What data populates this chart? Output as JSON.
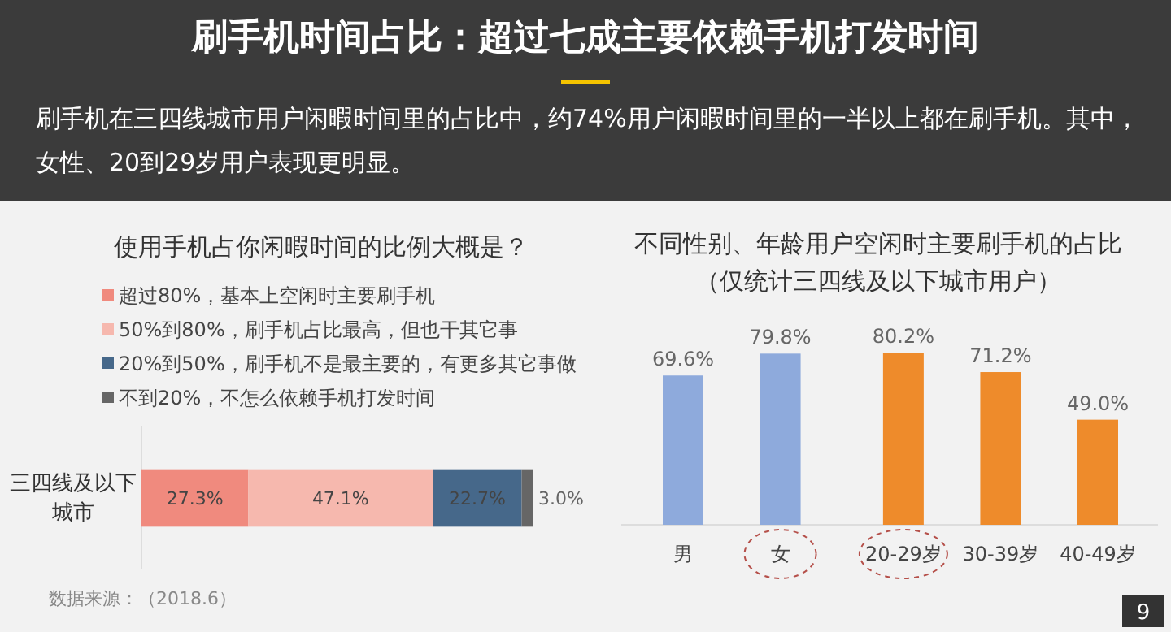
{
  "chart_data": [
    {
      "type": "other",
      "title": "刷手机时间占比：超过七成主要依赖手机打发时间",
      "subtitle": "刷手机在三四线城市用户闲暇时间里的占比中，约74%用户闲暇时间里的一半以上都在刷手机。其中，女性、20到29岁用户表现更明显。",
      "annotations": [
        "9"
      ]
    },
    {
      "type": "bar",
      "orientation": "horizontal",
      "stacked": true,
      "title": "使用手机占你闲暇时间的比例大概是？",
      "categories": [
        "三四线及以下城市"
      ],
      "tick_labels": "y",
      "legend": "top",
      "series": [
        {
          "name": "超过80%，基本上空闲时主要刷手机",
          "color": "#f08a7e",
          "values": [
            27.3
          ],
          "value_labels": [
            "27.3%"
          ]
        },
        {
          "name": "50%到80%，刷手机占比最高，但也干其它事",
          "color": "#f6b8ae",
          "values": [
            47.1
          ],
          "value_labels": [
            "47.1%"
          ]
        },
        {
          "name": "20%到50%，刷手机不是最主要的，有更多其它事做",
          "color": "#46688a",
          "values": [
            22.7
          ],
          "value_labels": [
            "22.7%"
          ]
        },
        {
          "name": "不到20%，不怎么依赖手机打发时间",
          "color": "#666666",
          "values": [
            3.0
          ],
          "value_labels": [
            "3.0%"
          ]
        }
      ],
      "annotations": [
        "数据来源：（2018.6）"
      ]
    },
    {
      "type": "bar",
      "title": "不同性别、年龄用户空闲时主要刷手机的占比",
      "subtitle": "（仅统计三四线及以下城市用户）",
      "categories": [
        "男",
        "女",
        "20-29岁",
        "30-39岁",
        "40-49岁"
      ],
      "values": [
        69.6,
        79.8,
        80.2,
        71.2,
        49.0
      ],
      "value_labels": [
        "69.6%",
        "79.8%",
        "80.2%",
        "71.2%",
        "49.0%"
      ],
      "colors": [
        "#8eaadc",
        "#8eaadc",
        "#ee8b2b",
        "#ee8b2b",
        "#ee8b2b"
      ],
      "tick_labels": "x"
    }
  ]
}
